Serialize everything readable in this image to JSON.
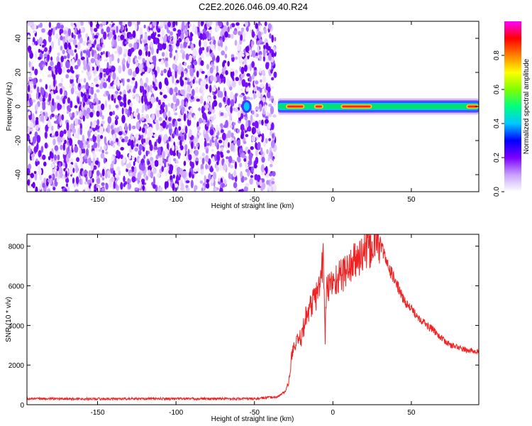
{
  "title": "C2E2.2026.046.09.40.R24",
  "chart_data": [
    {
      "type": "heatmap",
      "xlabel": "Height of straight line (km)",
      "ylabel": "Frequency (Hz)",
      "xlim": [
        -195,
        93
      ],
      "ylim": [
        -50,
        50
      ],
      "xticks": [
        -150,
        -100,
        -50,
        0,
        50
      ],
      "yticks": [
        -40,
        -20,
        0,
        20,
        40
      ],
      "noise_region_x": [
        -195,
        -35
      ],
      "signal_band": {
        "x_start": -35,
        "x_end": 93,
        "center_hz": 0,
        "halfwidth_hz": 3
      },
      "blobs": [
        {
          "x": -55,
          "y": 0
        }
      ],
      "colorbar": {
        "label": "Normalized spectral amplitude",
        "ticks": [
          "0.0",
          "0.2",
          "0.4",
          "0.6",
          "0.8"
        ],
        "range": [
          0,
          1
        ],
        "colors": [
          "#ffffff",
          "#c8a0ff",
          "#7a00ff",
          "#0000ff",
          "#00c8ff",
          "#00ff80",
          "#80ff00",
          "#ffff00",
          "#ff8000",
          "#ff0000",
          "#ff00ff"
        ]
      }
    },
    {
      "type": "line",
      "xlabel": "Height of straight line (km)",
      "ylabel": "SNR (10 * v/v)",
      "xlim": [
        -195,
        93
      ],
      "ylim": [
        0,
        8600
      ],
      "xticks": [
        -150,
        -100,
        -50,
        0,
        50
      ],
      "yticks": [
        0,
        2000,
        4000,
        6000,
        8000
      ],
      "color": "#ff0000",
      "x": [
        -195,
        -150,
        -100,
        -50,
        -35,
        -30,
        -28,
        -26,
        -24,
        -22,
        -20,
        -18,
        -16,
        -14,
        -12,
        -10,
        -8,
        -6,
        -5,
        -4,
        -2,
        0,
        5,
        10,
        15,
        20,
        25,
        28,
        30,
        35,
        40,
        45,
        50,
        55,
        60,
        65,
        70,
        75,
        80,
        85,
        90,
        93
      ],
      "y": [
        300,
        300,
        300,
        300,
        400,
        700,
        1200,
        2600,
        3000,
        3200,
        3400,
        4200,
        4700,
        5000,
        5300,
        5600,
        6200,
        7600,
        3200,
        5800,
        6000,
        6200,
        6500,
        6900,
        7300,
        7700,
        8000,
        8400,
        8200,
        7000,
        6200,
        5300,
        4800,
        4400,
        4000,
        3700,
        3300,
        3000,
        2900,
        2750,
        2700,
        2700
      ]
    }
  ]
}
